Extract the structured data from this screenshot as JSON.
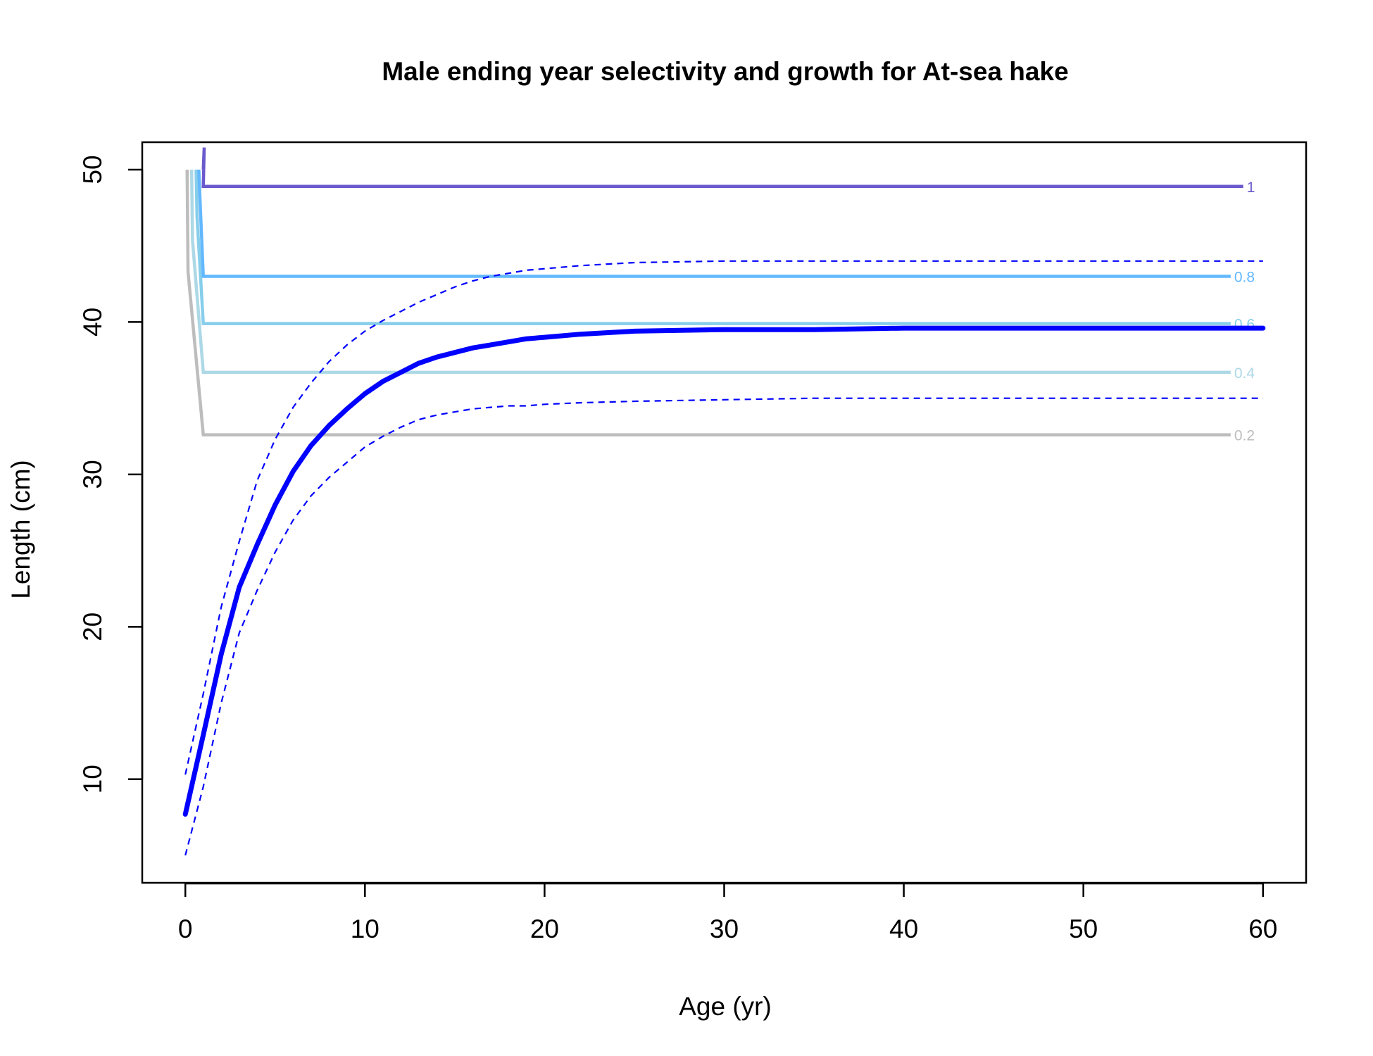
{
  "chart_data": {
    "type": "line",
    "title": "Male ending year selectivity and growth for At-sea hake",
    "xlabel": "Age (yr)",
    "ylabel": "Length (cm)",
    "xlim": [
      -2.4,
      62.4
    ],
    "ylim": [
      3.2,
      51.8
    ],
    "xticks": [
      0,
      10,
      20,
      30,
      40,
      50,
      60
    ],
    "yticks": [
      10,
      20,
      30,
      40,
      50
    ],
    "growth": {
      "color": "#0000ff",
      "mean": {
        "x": [
          0,
          1,
          2,
          3,
          4,
          5,
          6,
          7,
          8,
          9,
          10,
          11,
          12,
          13,
          14,
          15,
          16,
          17,
          18,
          19,
          20,
          22,
          25,
          30,
          35,
          40,
          45,
          50,
          55,
          60
        ],
        "y": [
          7.7,
          12.9,
          18.2,
          22.6,
          25.4,
          28.0,
          30.2,
          31.9,
          33.2,
          34.3,
          35.3,
          36.1,
          36.7,
          37.3,
          37.7,
          38.0,
          38.3,
          38.5,
          38.7,
          38.9,
          39.0,
          39.2,
          39.4,
          39.5,
          39.5,
          39.6,
          39.6,
          39.6,
          39.6,
          39.6
        ]
      },
      "upper": {
        "x": [
          0,
          1,
          2,
          3,
          4,
          5,
          6,
          7,
          8,
          9,
          10,
          11,
          12,
          13,
          14,
          15,
          16,
          17,
          18,
          19,
          20,
          22,
          25,
          30,
          35,
          40,
          45,
          50,
          55,
          60
        ],
        "y": [
          10.3,
          15.6,
          21.3,
          25.6,
          29.6,
          32.3,
          34.4,
          36.0,
          37.4,
          38.5,
          39.4,
          40.1,
          40.7,
          41.3,
          41.8,
          42.3,
          42.7,
          43.0,
          43.2,
          43.4,
          43.5,
          43.7,
          43.9,
          44.0,
          44.0,
          44.0,
          44.0,
          44.0,
          44.0,
          44.0
        ]
      },
      "lower": {
        "x": [
          0,
          1,
          2,
          3,
          4,
          5,
          6,
          7,
          8,
          9,
          10,
          11,
          12,
          13,
          14,
          15,
          16,
          17,
          18,
          19,
          20,
          22,
          25,
          30,
          35,
          40,
          45,
          50,
          55,
          60
        ],
        "y": [
          5.0,
          9.5,
          15.0,
          19.6,
          22.4,
          24.9,
          27.0,
          28.6,
          29.8,
          30.8,
          31.8,
          32.5,
          33.1,
          33.6,
          33.9,
          34.1,
          34.3,
          34.4,
          34.5,
          34.5,
          34.6,
          34.7,
          34.8,
          34.9,
          35.0,
          35.0,
          35.0,
          35.0,
          35.0,
          35.0
        ]
      }
    },
    "selectivity_contours": [
      {
        "label": "0.2",
        "color": "#bdbdbd",
        "level_length": 32.6,
        "x_end": 58.2,
        "vertex": [
          0.1,
          50.0
        ],
        "corner": [
          1.0,
          32.6
        ]
      },
      {
        "label": "0.4",
        "color": "#add8e6",
        "level_length": 36.7,
        "x_end": 58.2,
        "vertex": [
          0.35,
          50.0
        ],
        "corner": [
          1.0,
          36.7
        ]
      },
      {
        "label": "0.6",
        "color": "#87ceeb",
        "level_length": 39.9,
        "x_end": 58.2,
        "vertex": [
          0.6,
          50.0
        ],
        "corner": [
          1.0,
          39.9
        ]
      },
      {
        "label": "0.8",
        "color": "#63b8ff",
        "level_length": 43.0,
        "x_end": 58.2,
        "vertex": [
          0.75,
          50.0
        ],
        "corner": [
          1.0,
          43.0
        ]
      },
      {
        "label": "1",
        "color": "#6a5acd",
        "level_length": 48.9,
        "x_end": 58.9,
        "vertex": [
          1.0,
          50.0
        ],
        "corner": [
          1.0,
          48.9
        ]
      }
    ]
  }
}
